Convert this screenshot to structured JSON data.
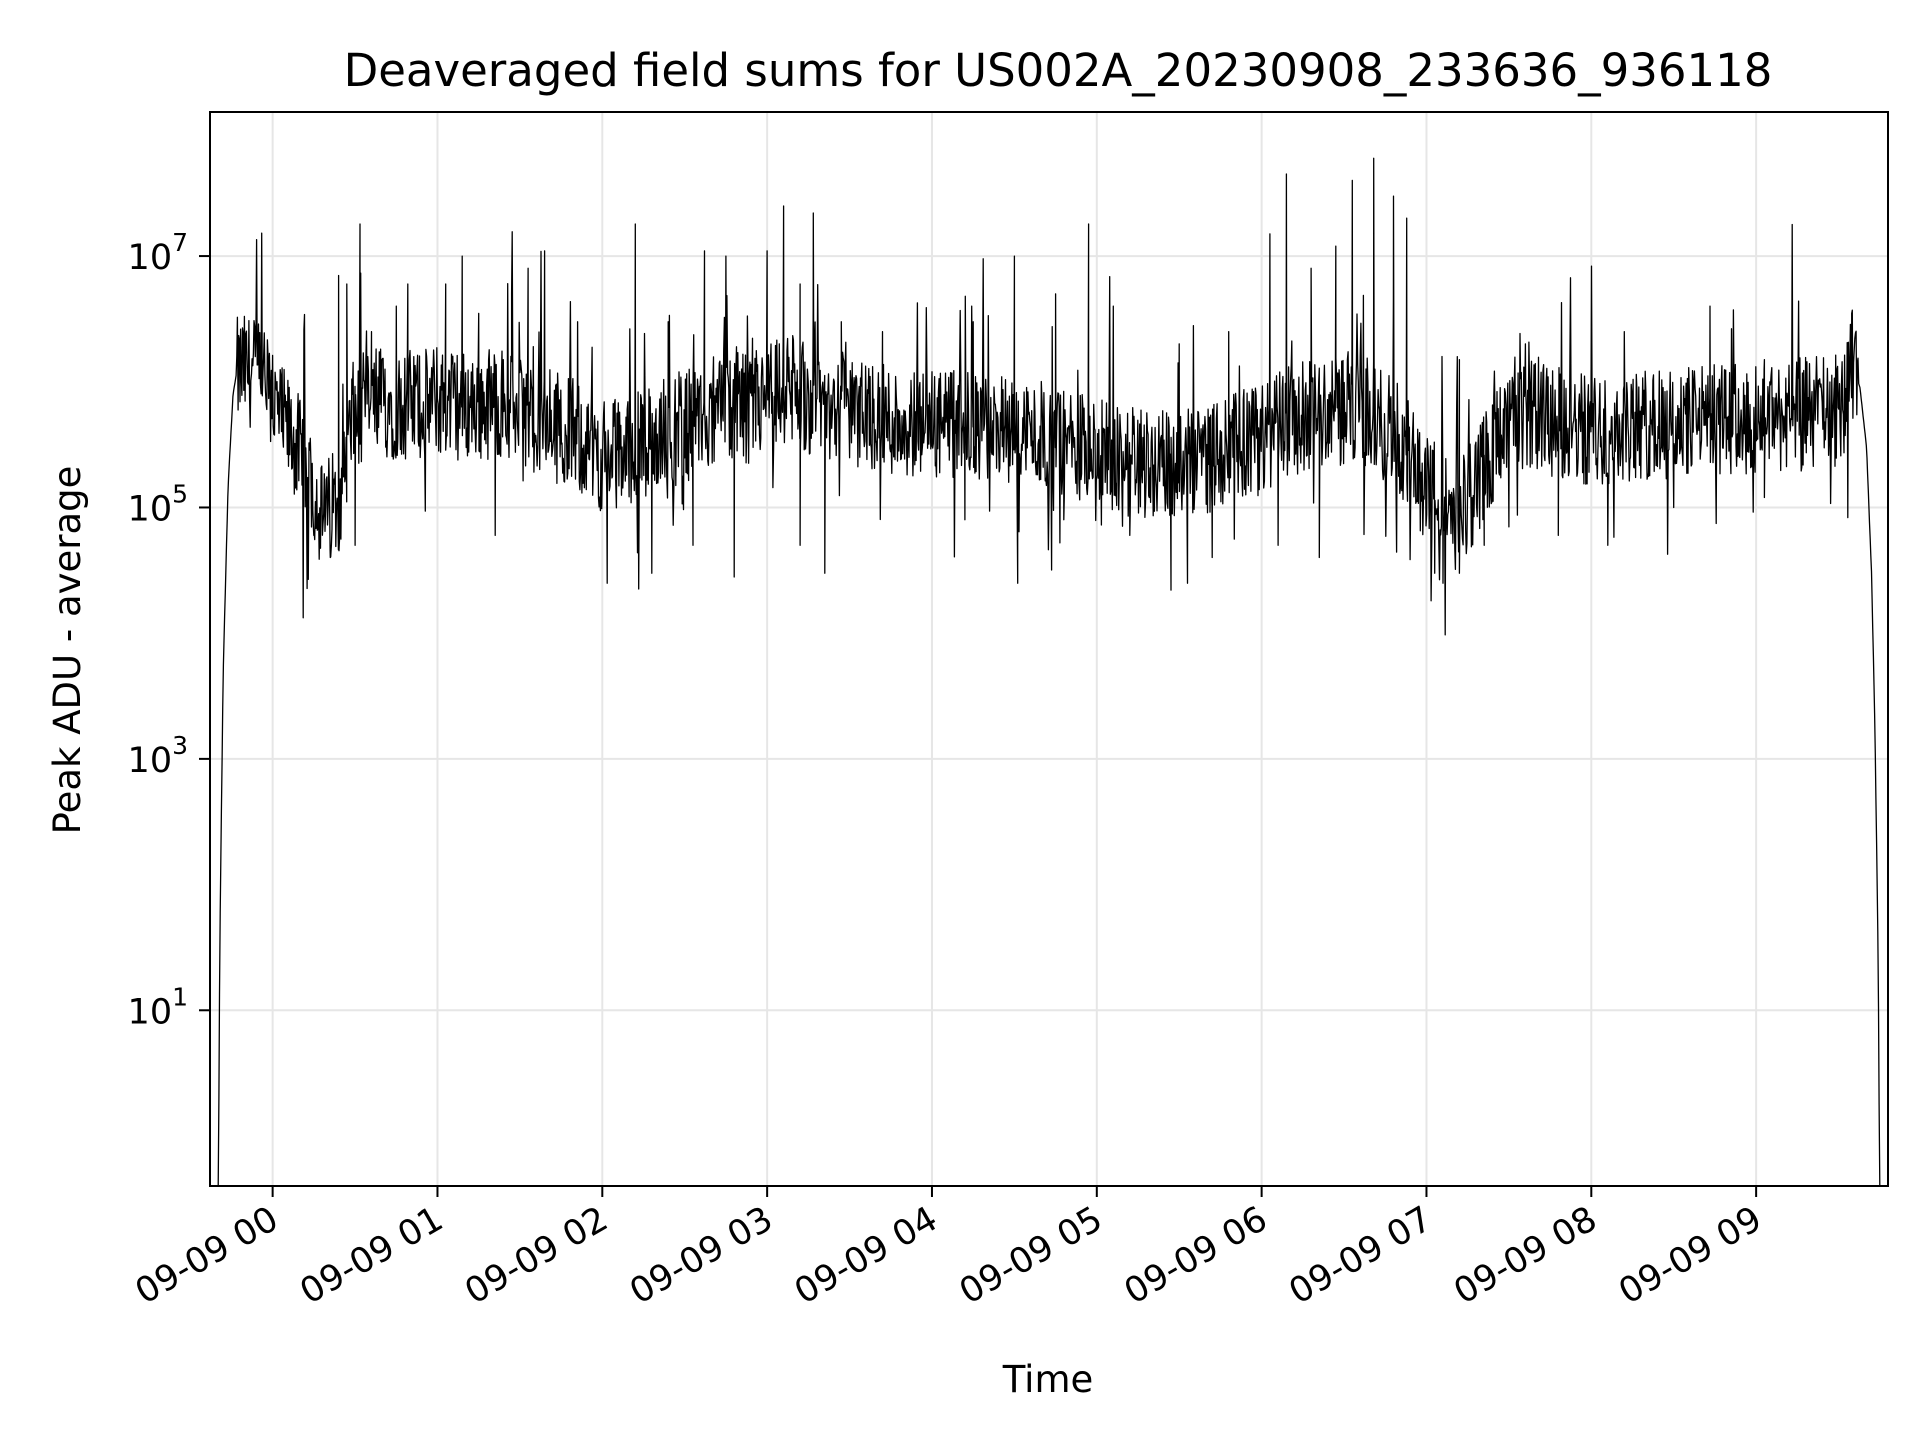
{
  "chart_data": {
    "type": "line",
    "title": "Deaveraged field sums for US002A_20230908_233636_936118",
    "xlabel": "Time",
    "ylabel": "Peak ADU - average",
    "yscale": "log",
    "ylim": [
      0.4,
      140000000.0
    ],
    "xlim_hours": [
      -0.38,
      9.8
    ],
    "x_ticks": [
      {
        "label": "09-09 00",
        "hour": 0
      },
      {
        "label": "09-09 01",
        "hour": 1
      },
      {
        "label": "09-09 02",
        "hour": 2
      },
      {
        "label": "09-09 03",
        "hour": 3
      },
      {
        "label": "09-09 04",
        "hour": 4
      },
      {
        "label": "09-09 05",
        "hour": 5
      },
      {
        "label": "09-09 06",
        "hour": 6
      },
      {
        "label": "09-09 07",
        "hour": 7
      },
      {
        "label": "09-09 08",
        "hour": 8
      },
      {
        "label": "09-09 09",
        "hour": 9
      }
    ],
    "y_ticks": [
      {
        "base": "10",
        "exp": "1",
        "value": 10
      },
      {
        "base": "10",
        "exp": "3",
        "value": 1000
      },
      {
        "base": "10",
        "exp": "5",
        "value": 100000
      },
      {
        "base": "10",
        "exp": "7",
        "value": 10000000
      }
    ],
    "grid": true,
    "line_color": "#000000",
    "grid_color": "#e6e6e6",
    "series": [
      {
        "points": [
          [
            -0.33,
            0.3
          ],
          [
            -0.32,
            40
          ],
          [
            -0.3,
            5000
          ],
          [
            -0.27,
            150000
          ],
          [
            -0.24,
            800000
          ],
          [
            -0.22,
            1150000
          ],
          [
            -0.18,
            1250000
          ],
          [
            -0.12,
            1200000
          ],
          [
            -0.06,
            1150000
          ],
          [
            -0.03,
            800000
          ],
          [
            0.05,
            500000
          ],
          [
            0.15,
            300000
          ],
          [
            0.25,
            150000
          ],
          [
            0.3,
            80000
          ],
          [
            0.4,
            120000
          ],
          [
            0.45,
            300000
          ],
          [
            0.5,
            600000
          ],
          [
            0.6,
            700000
          ],
          [
            0.8,
            650000
          ],
          [
            1.0,
            700000
          ],
          [
            1.2,
            650000
          ],
          [
            1.4,
            700000
          ],
          [
            1.6,
            500000
          ],
          [
            1.8,
            400000
          ],
          [
            2.0,
            250000
          ],
          [
            2.2,
            300000
          ],
          [
            2.4,
            400000
          ],
          [
            2.6,
            500000
          ],
          [
            2.8,
            600000
          ],
          [
            3.0,
            700000
          ],
          [
            3.1,
            900000
          ],
          [
            3.3,
            700000
          ],
          [
            3.5,
            600000
          ],
          [
            3.7,
            500000
          ],
          [
            4.0,
            450000
          ],
          [
            4.3,
            420000
          ],
          [
            4.6,
            400000
          ],
          [
            4.9,
            300000
          ],
          [
            5.2,
            250000
          ],
          [
            5.5,
            200000
          ],
          [
            5.8,
            300000
          ],
          [
            6.0,
            350000
          ],
          [
            6.2,
            500000
          ],
          [
            6.4,
            600000
          ],
          [
            6.6,
            650000
          ],
          [
            6.8,
            400000
          ],
          [
            7.0,
            150000
          ],
          [
            7.2,
            80000
          ],
          [
            7.4,
            300000
          ],
          [
            7.6,
            550000
          ],
          [
            8.0,
            400000
          ],
          [
            8.4,
            450000
          ],
          [
            8.8,
            500000
          ],
          [
            9.2,
            550000
          ],
          [
            9.5,
            600000
          ],
          [
            9.58,
            1400000
          ],
          [
            9.63,
            900000
          ],
          [
            9.67,
            300000
          ],
          [
            9.7,
            30000
          ],
          [
            9.72,
            2000
          ],
          [
            9.74,
            30
          ],
          [
            9.75,
            0.3
          ]
        ],
        "spikes": [
          [
            0.4,
            7000000
          ],
          [
            0.45,
            6000000
          ],
          [
            0.53,
            18000000
          ],
          [
            0.6,
            2500000
          ],
          [
            0.75,
            4000000
          ],
          [
            0.82,
            6000000
          ],
          [
            1.05,
            6000000
          ],
          [
            1.15,
            10000000
          ],
          [
            1.25,
            3500000
          ],
          [
            1.45,
            5000000
          ],
          [
            1.55,
            8000000
          ],
          [
            1.65,
            11000000
          ],
          [
            1.85,
            3000000
          ],
          [
            2.2,
            18000000
          ],
          [
            2.4,
            3000000
          ],
          [
            2.62,
            11000000
          ],
          [
            2.75,
            10000000
          ],
          [
            3.0,
            11000000
          ],
          [
            3.1,
            25000000
          ],
          [
            3.2,
            6000000
          ],
          [
            3.28,
            22000000
          ],
          [
            3.45,
            3000000
          ],
          [
            3.7,
            2500000
          ],
          [
            4.0,
            1200000
          ],
          [
            4.25,
            3000000
          ],
          [
            4.5,
            10000000
          ],
          [
            4.75,
            5000000
          ],
          [
            4.95,
            18000000
          ],
          [
            5.1,
            4000000
          ],
          [
            5.5,
            2000000
          ],
          [
            5.8,
            2500000
          ],
          [
            6.05,
            15000000
          ],
          [
            6.15,
            45000000
          ],
          [
            6.3,
            8000000
          ],
          [
            6.45,
            12000000
          ],
          [
            6.55,
            40000000
          ],
          [
            6.68,
            60000000
          ],
          [
            6.8,
            30000000
          ],
          [
            6.88,
            20000000
          ],
          [
            7.2,
            1500000
          ],
          [
            7.6,
            2000000
          ],
          [
            8.2,
            2500000
          ],
          [
            8.72,
            4000000
          ],
          [
            9.05,
            1500000
          ],
          [
            9.25,
            1200000
          ],
          [
            9.58,
            3500000
          ]
        ],
        "dips": [
          [
            0.25,
            60000
          ],
          [
            0.35,
            40000
          ],
          [
            0.5,
            50000
          ],
          [
            1.35,
            60000
          ],
          [
            2.03,
            25000
          ],
          [
            2.3,
            30000
          ],
          [
            2.55,
            50000
          ],
          [
            2.8,
            28000
          ],
          [
            3.2,
            50000
          ],
          [
            3.35,
            30000
          ],
          [
            4.2,
            80000
          ],
          [
            4.52,
            25000
          ],
          [
            4.8,
            80000
          ],
          [
            5.2,
            60000
          ],
          [
            5.45,
            22000
          ],
          [
            5.55,
            25000
          ],
          [
            5.7,
            40000
          ],
          [
            6.1,
            50000
          ],
          [
            6.35,
            40000
          ],
          [
            7.05,
            30000
          ],
          [
            7.1,
            25000
          ],
          [
            7.2,
            30000
          ],
          [
            7.35,
            50000
          ],
          [
            7.5,
            70000
          ],
          [
            7.8,
            60000
          ],
          [
            8.1,
            50000
          ],
          [
            8.5,
            100000
          ],
          [
            9.05,
            120000
          ]
        ]
      }
    ]
  }
}
